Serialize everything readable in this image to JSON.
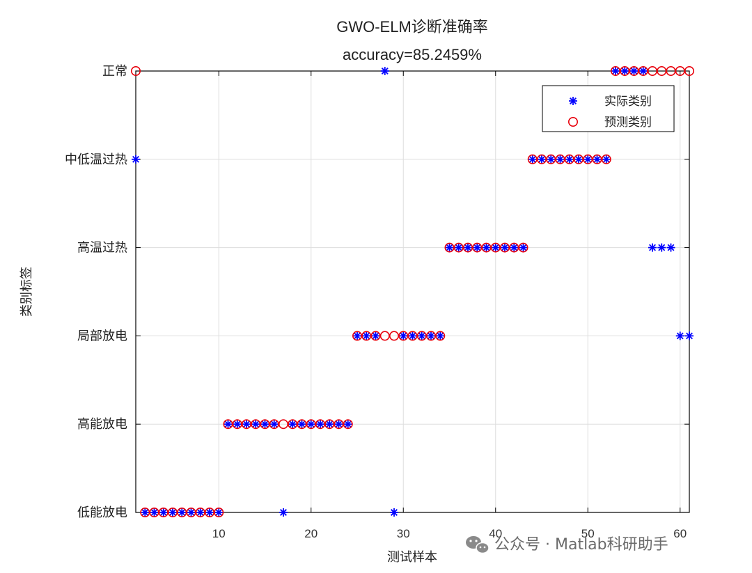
{
  "chart_data": {
    "type": "scatter",
    "title": "GWO-ELM诊断准确率",
    "subtitle": "accuracy=85.2459%",
    "xlabel": "测试样本",
    "ylabel": "类别标签",
    "xlim": [
      1,
      61
    ],
    "ylim": [
      1,
      6
    ],
    "x_ticks": [
      10,
      20,
      30,
      40,
      50,
      60
    ],
    "y_ticks": [
      1,
      2,
      3,
      4,
      5,
      6
    ],
    "y_tick_labels": [
      "低能放电",
      "高能放电",
      "局部放电",
      "高温过热",
      "中低温过热",
      "正常"
    ],
    "grid": true,
    "legend_position": "top-right",
    "series": [
      {
        "name": "实际类别",
        "marker": "asterisk",
        "color": "#0000ff",
        "x": [
          1,
          2,
          3,
          4,
          5,
          6,
          7,
          8,
          9,
          10,
          11,
          12,
          13,
          14,
          15,
          16,
          17,
          18,
          19,
          20,
          21,
          22,
          23,
          24,
          25,
          26,
          27,
          28,
          29,
          30,
          31,
          32,
          33,
          34,
          35,
          36,
          37,
          38,
          39,
          40,
          41,
          42,
          43,
          44,
          45,
          46,
          47,
          48,
          49,
          50,
          51,
          52,
          53,
          54,
          55,
          56,
          57,
          58,
          59,
          60,
          61
        ],
        "y": [
          5,
          1,
          1,
          1,
          1,
          1,
          1,
          1,
          1,
          1,
          2,
          2,
          2,
          2,
          2,
          2,
          1,
          2,
          2,
          2,
          2,
          2,
          2,
          2,
          3,
          3,
          3,
          6,
          1,
          3,
          3,
          3,
          3,
          3,
          4,
          4,
          4,
          4,
          4,
          4,
          4,
          4,
          4,
          5,
          5,
          5,
          5,
          5,
          5,
          5,
          5,
          5,
          6,
          6,
          6,
          6,
          4,
          4,
          4,
          3,
          3
        ]
      },
      {
        "name": "预测类别",
        "marker": "circle",
        "color": "#e8000b",
        "x": [
          1,
          2,
          3,
          4,
          5,
          6,
          7,
          8,
          9,
          10,
          11,
          12,
          13,
          14,
          15,
          16,
          17,
          18,
          19,
          20,
          21,
          22,
          23,
          24,
          25,
          26,
          27,
          28,
          29,
          30,
          31,
          32,
          33,
          34,
          35,
          36,
          37,
          38,
          39,
          40,
          41,
          42,
          43,
          44,
          45,
          46,
          47,
          48,
          49,
          50,
          51,
          52,
          53,
          54,
          55,
          56,
          57,
          58,
          59,
          60,
          61
        ],
        "y": [
          6,
          1,
          1,
          1,
          1,
          1,
          1,
          1,
          1,
          1,
          2,
          2,
          2,
          2,
          2,
          2,
          2,
          2,
          2,
          2,
          2,
          2,
          2,
          2,
          3,
          3,
          3,
          3,
          3,
          3,
          3,
          3,
          3,
          3,
          4,
          4,
          4,
          4,
          4,
          4,
          4,
          4,
          4,
          5,
          5,
          5,
          5,
          5,
          5,
          5,
          5,
          5,
          6,
          6,
          6,
          6,
          6,
          6,
          6,
          6,
          6
        ]
      }
    ]
  },
  "watermark": {
    "text": "公众号 · Matlab科研助手",
    "icon": "wechat-icon"
  },
  "colors": {
    "axes": "#000000",
    "grid": "#dddddd",
    "actual": "#0000ff",
    "predicted": "#e8000b"
  }
}
